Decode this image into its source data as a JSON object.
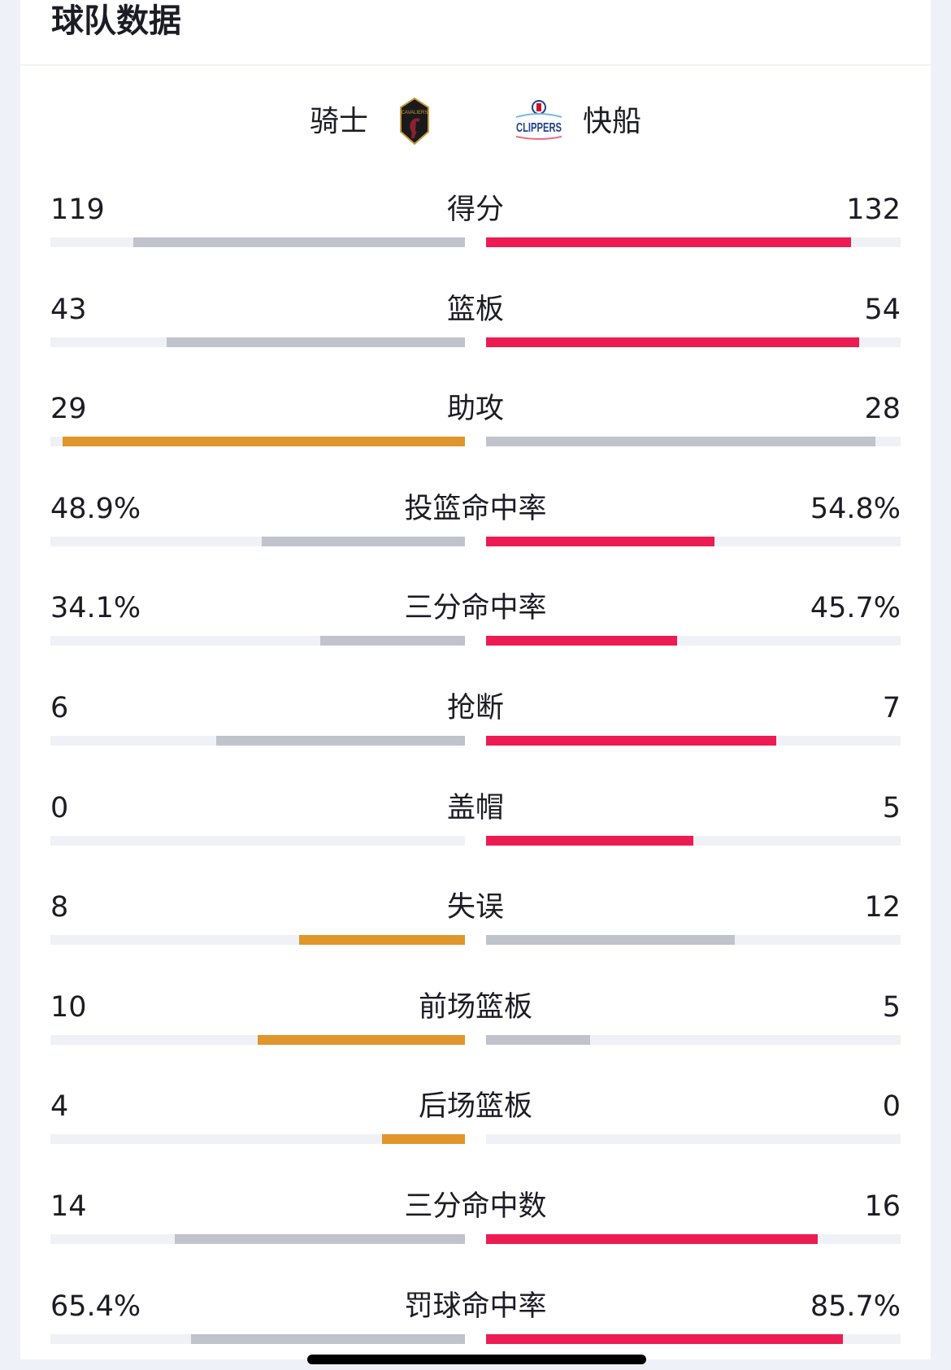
{
  "header": {
    "title": "球队数据"
  },
  "teams": {
    "home": {
      "name": "骑士",
      "logo": "cavaliers-logo"
    },
    "away": {
      "name": "快船",
      "logo": "clippers-logo"
    }
  },
  "colors": {
    "away_lead": "#ec1c53",
    "home_lead": "#e0962a",
    "neutral": "#c0c3cb",
    "track": "#eff1f6"
  },
  "stats": [
    {
      "label": "得分",
      "left": "119",
      "right": "132",
      "left_fill": 0.8,
      "right_fill": 0.88,
      "left_color": "neutral",
      "right_color": "away_lead"
    },
    {
      "label": "篮板",
      "left": "43",
      "right": "54",
      "left_fill": 0.72,
      "right_fill": 0.9,
      "left_color": "neutral",
      "right_color": "away_lead"
    },
    {
      "label": "助攻",
      "left": "29",
      "right": "28",
      "left_fill": 0.97,
      "right_fill": 0.94,
      "left_color": "home_lead",
      "right_color": "neutral"
    },
    {
      "label": "投篮命中率",
      "left": "48.9%",
      "right": "54.8%",
      "left_fill": 0.49,
      "right_fill": 0.55,
      "left_color": "neutral",
      "right_color": "away_lead"
    },
    {
      "label": "三分命中率",
      "left": "34.1%",
      "right": "45.7%",
      "left_fill": 0.35,
      "right_fill": 0.46,
      "left_color": "neutral",
      "right_color": "away_lead"
    },
    {
      "label": "抢断",
      "left": "6",
      "right": "7",
      "left_fill": 0.6,
      "right_fill": 0.7,
      "left_color": "neutral",
      "right_color": "away_lead"
    },
    {
      "label": "盖帽",
      "left": "0",
      "right": "5",
      "left_fill": 0,
      "right_fill": 0.5,
      "left_color": "neutral",
      "right_color": "away_lead"
    },
    {
      "label": "失误",
      "left": "8",
      "right": "12",
      "left_fill": 0.4,
      "right_fill": 0.6,
      "left_color": "home_lead",
      "right_color": "neutral"
    },
    {
      "label": "前场篮板",
      "left": "10",
      "right": "5",
      "left_fill": 0.5,
      "right_fill": 0.25,
      "left_color": "home_lead",
      "right_color": "neutral"
    },
    {
      "label": "后场篮板",
      "left": "4",
      "right": "0",
      "left_fill": 0.2,
      "right_fill": 0,
      "left_color": "home_lead",
      "right_color": "neutral"
    },
    {
      "label": "三分命中数",
      "left": "14",
      "right": "16",
      "left_fill": 0.7,
      "right_fill": 0.8,
      "left_color": "neutral",
      "right_color": "away_lead"
    },
    {
      "label": "罚球命中率",
      "left": "65.4%",
      "right": "85.7%",
      "left_fill": 0.66,
      "right_fill": 0.86,
      "left_color": "neutral",
      "right_color": "away_lead"
    }
  ]
}
